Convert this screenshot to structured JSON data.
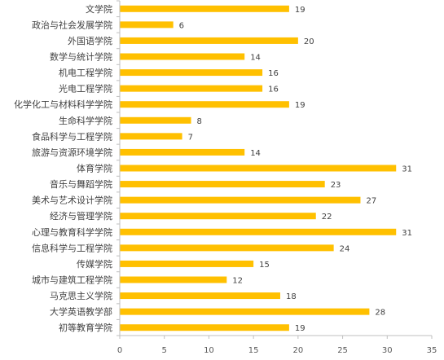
{
  "chart_data": {
    "type": "bar",
    "orientation": "horizontal",
    "title": "",
    "xlabel": "",
    "ylabel": "",
    "categories": [
      "文学院",
      "政治与社会发展学院",
      "外国语学院",
      "数学与统计学院",
      "机电工程学院",
      "光电工程学院",
      "化学化工与材料科学学院",
      "生命科学学院",
      "食品科学与工程学院",
      "旅游与资源环境学院",
      "体育学院",
      "音乐与舞蹈学院",
      "美术与艺术设计学院",
      "经济与管理学院",
      "心理与教育科学学院",
      "信息科学与工程学院",
      "传媒学院",
      "城市与建筑工程学院",
      "马克思主义学院",
      "大学英语教学部",
      "初等教育学院"
    ],
    "values": [
      19,
      6,
      20,
      14,
      16,
      16,
      19,
      8,
      7,
      14,
      31,
      23,
      27,
      22,
      31,
      24,
      15,
      12,
      18,
      28,
      19
    ],
    "value_labels": [
      "19",
      "6",
      "20",
      "14",
      "16",
      "16",
      "19",
      "8",
      "7",
      "14",
      "31",
      "23",
      "27",
      "22",
      "31",
      "24",
      "15",
      "12",
      "18",
      "28",
      "19"
    ],
    "xlim": [
      0,
      35
    ],
    "x_ticks": [
      "0",
      "5",
      "10",
      "15",
      "20",
      "25",
      "30",
      "35"
    ],
    "x_tick_values": [
      0,
      5,
      10,
      15,
      20,
      25,
      30,
      35
    ],
    "grid": false,
    "legend": "none",
    "bar_color": "#FFC000",
    "axis_color": "#BFBFBF",
    "text_color": "#404040"
  }
}
